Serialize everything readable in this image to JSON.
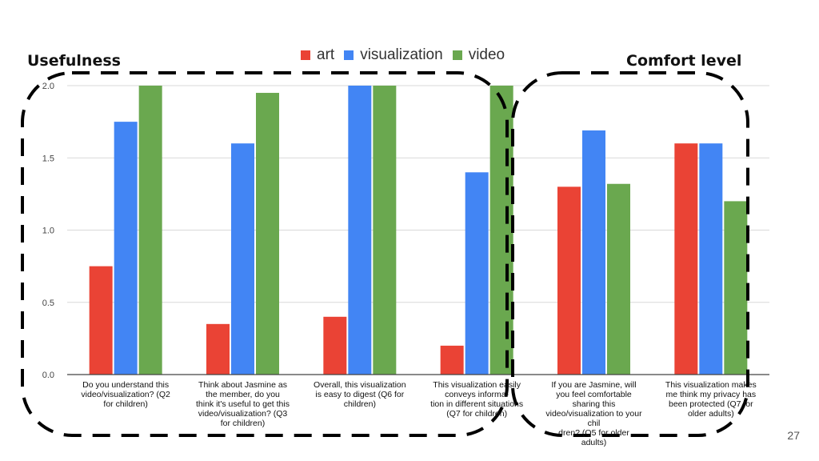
{
  "page_number": "27",
  "group_labels": {
    "usefulness": "Usefulness",
    "comfort": "Comfort level"
  },
  "colors": {
    "art": "#ea4335",
    "visualization": "#4285f4",
    "video": "#6aa84f"
  },
  "chart_data": {
    "type": "bar",
    "title": "",
    "xlabel": "",
    "ylabel": "",
    "ylim": [
      0,
      2.0
    ],
    "yticks": [
      "0.0",
      "0.5",
      "1.0",
      "1.5",
      "2.0"
    ],
    "grid": true,
    "legend_position": "top",
    "categories": [
      "Do you understand this\nvideo/visualization? (Q2\nfor children)",
      "Think about Jasmine as\nthe member, do you\nthink it's useful to get this\nvideo/visualization? (Q3\nfor children)",
      "Overall, this visualization\nis easy to digest (Q6 for\nchildren)",
      "This visualization easily\nconveys informa-\ntion in different situations\n(Q7 for children)",
      "If you are Jasmine, will\nyou feel comfortable\nsharing this\nvideo/visualization to your\nchil\ndren? (Q5 for older\nadults)",
      "This visualization makes\nme think my privacy has\nbeen protected (Q7 for\nolder adults)"
    ],
    "series": [
      {
        "name": "art",
        "values": [
          0.75,
          0.35,
          0.4,
          0.2,
          1.3,
          1.6
        ]
      },
      {
        "name": "visualization",
        "values": [
          1.75,
          1.6,
          2.0,
          1.4,
          1.69,
          1.6
        ]
      },
      {
        "name": "video",
        "values": [
          2.0,
          1.95,
          2.0,
          2.0,
          1.32,
          1.2
        ]
      }
    ]
  }
}
